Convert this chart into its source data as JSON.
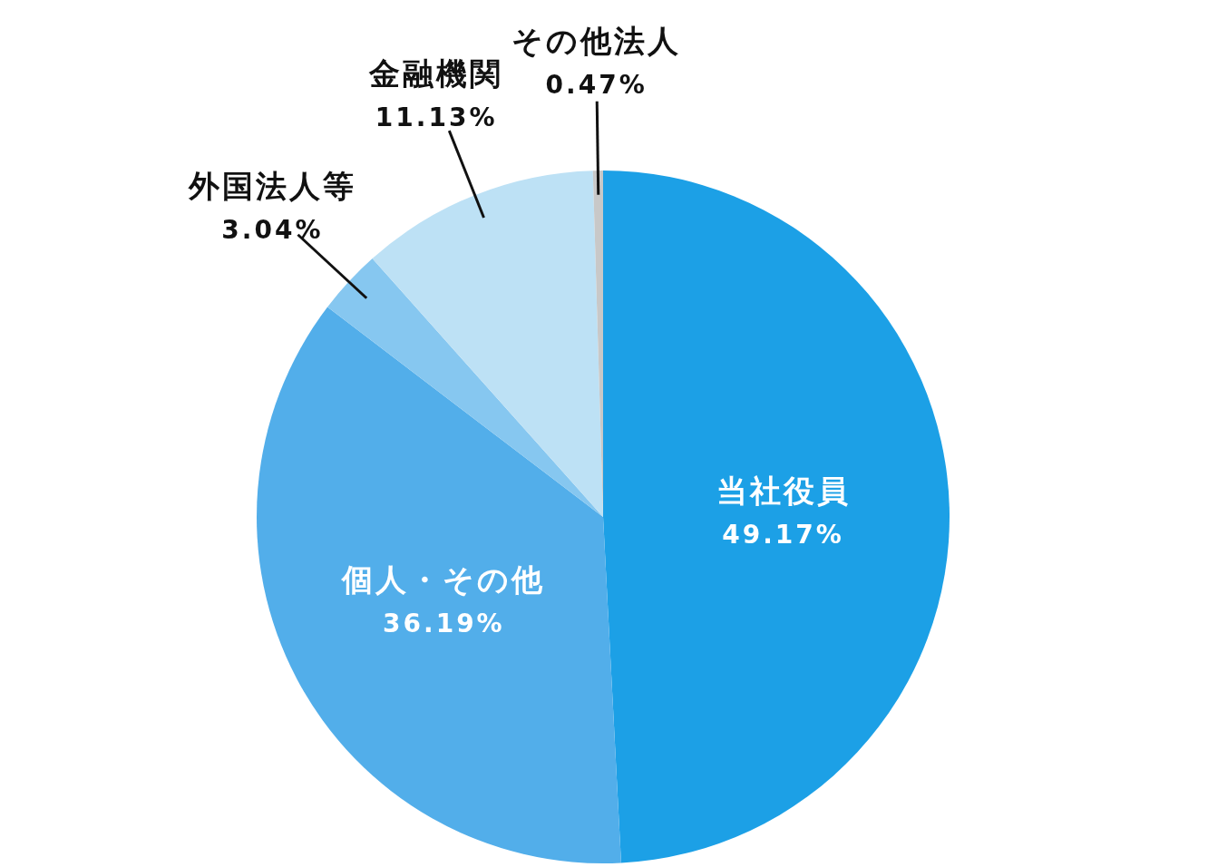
{
  "chart_data": {
    "type": "pie",
    "categories": [
      "当社役員",
      "個人・その他",
      "外国法人等",
      "金融機関",
      "その他法人"
    ],
    "values": [
      49.17,
      36.19,
      3.04,
      11.13,
      0.47
    ],
    "colors": [
      "#1ca0e6",
      "#52aeea",
      "#86c7f0",
      "#bde1f5",
      "#c8c8c8"
    ],
    "value_labels": [
      "49.17%",
      "36.19%",
      "3.04%",
      "11.13%",
      "0.47%"
    ]
  }
}
